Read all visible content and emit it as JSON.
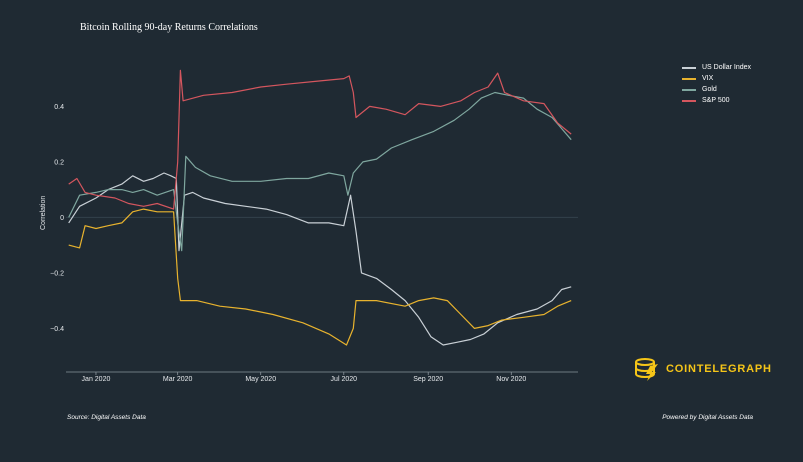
{
  "source_text": "Source: Digital Assets Data",
  "powered_text": "Powered by Digital Assets Data",
  "brand": {
    "name": "COINTELEGRAPH",
    "logo_icon": "cointelegraph-logo-icon",
    "color": "#f5c518"
  },
  "chart_data": {
    "type": "line",
    "title": "Bitcoin Rolling 90-day Returns Correlations",
    "xlabel": "",
    "ylabel": "Correlation",
    "xlim": [
      "2019-12-10",
      "2020-12-20"
    ],
    "ylim": [
      -0.55,
      0.56
    ],
    "x_ticks": [
      "2020-01-01",
      "2020-03-01",
      "2020-05-01",
      "2020-07-01",
      "2020-09-01",
      "2020-11-01"
    ],
    "x_tick_labels": [
      "Jan 2020",
      "Mar 2020",
      "May 2020",
      "Jul 2020",
      "Sep 2020",
      "Nov 2020"
    ],
    "y_ticks": [
      -0.4,
      -0.2,
      0,
      0.2,
      0.4
    ],
    "y_tick_labels": [
      "−0.4",
      "−0.2",
      "0",
      "0.2",
      "0.4"
    ],
    "grid": false,
    "zero_line": true,
    "legend_position": "top-right",
    "series": [
      {
        "name": "US Dollar Index",
        "color": "#c9d0d6",
        "points": [
          [
            "2019-12-12",
            -0.02
          ],
          [
            "2019-12-20",
            0.04
          ],
          [
            "2020-01-01",
            0.07
          ],
          [
            "2020-01-10",
            0.1
          ],
          [
            "2020-01-20",
            0.12
          ],
          [
            "2020-01-28",
            0.15
          ],
          [
            "2020-02-05",
            0.13
          ],
          [
            "2020-02-12",
            0.14
          ],
          [
            "2020-02-20",
            0.16
          ],
          [
            "2020-02-25",
            0.15
          ],
          [
            "2020-02-29",
            0.14
          ],
          [
            "2020-03-02",
            -0.12
          ],
          [
            "2020-03-06",
            0.08
          ],
          [
            "2020-03-12",
            0.09
          ],
          [
            "2020-03-20",
            0.07
          ],
          [
            "2020-04-05",
            0.05
          ],
          [
            "2020-04-20",
            0.04
          ],
          [
            "2020-05-05",
            0.03
          ],
          [
            "2020-05-20",
            0.01
          ],
          [
            "2020-06-05",
            -0.02
          ],
          [
            "2020-06-20",
            -0.02
          ],
          [
            "2020-07-01",
            -0.03
          ],
          [
            "2020-07-06",
            0.08
          ],
          [
            "2020-07-10",
            -0.05
          ],
          [
            "2020-07-14",
            -0.2
          ],
          [
            "2020-07-25",
            -0.22
          ],
          [
            "2020-08-05",
            -0.26
          ],
          [
            "2020-08-15",
            -0.3
          ],
          [
            "2020-08-25",
            -0.36
          ],
          [
            "2020-09-03",
            -0.43
          ],
          [
            "2020-09-12",
            -0.46
          ],
          [
            "2020-09-22",
            -0.45
          ],
          [
            "2020-10-02",
            -0.44
          ],
          [
            "2020-10-12",
            -0.42
          ],
          [
            "2020-10-22",
            -0.38
          ],
          [
            "2020-11-05",
            -0.35
          ],
          [
            "2020-11-20",
            -0.33
          ],
          [
            "2020-12-01",
            -0.3
          ],
          [
            "2020-12-08",
            -0.26
          ],
          [
            "2020-12-15",
            -0.25
          ]
        ]
      },
      {
        "name": "VIX",
        "color": "#e8b32e",
        "points": [
          [
            "2019-12-12",
            -0.1
          ],
          [
            "2019-12-20",
            -0.11
          ],
          [
            "2019-12-24",
            -0.03
          ],
          [
            "2020-01-01",
            -0.04
          ],
          [
            "2020-01-10",
            -0.03
          ],
          [
            "2020-01-20",
            -0.02
          ],
          [
            "2020-01-28",
            0.02
          ],
          [
            "2020-02-05",
            0.03
          ],
          [
            "2020-02-15",
            0.02
          ],
          [
            "2020-02-27",
            0.02
          ],
          [
            "2020-03-01",
            -0.22
          ],
          [
            "2020-03-03",
            -0.3
          ],
          [
            "2020-03-15",
            -0.3
          ],
          [
            "2020-04-01",
            -0.32
          ],
          [
            "2020-04-20",
            -0.33
          ],
          [
            "2020-05-10",
            -0.35
          ],
          [
            "2020-06-01",
            -0.38
          ],
          [
            "2020-06-20",
            -0.42
          ],
          [
            "2020-07-03",
            -0.46
          ],
          [
            "2020-07-08",
            -0.4
          ],
          [
            "2020-07-10",
            -0.3
          ],
          [
            "2020-07-25",
            -0.3
          ],
          [
            "2020-08-15",
            -0.32
          ],
          [
            "2020-08-25",
            -0.3
          ],
          [
            "2020-09-05",
            -0.29
          ],
          [
            "2020-09-15",
            -0.3
          ],
          [
            "2020-09-25",
            -0.35
          ],
          [
            "2020-10-05",
            -0.4
          ],
          [
            "2020-10-15",
            -0.39
          ],
          [
            "2020-10-25",
            -0.37
          ],
          [
            "2020-11-10",
            -0.36
          ],
          [
            "2020-11-25",
            -0.35
          ],
          [
            "2020-12-05",
            -0.32
          ],
          [
            "2020-12-15",
            -0.3
          ]
        ]
      },
      {
        "name": "Gold",
        "color": "#7fa79f",
        "points": [
          [
            "2019-12-12",
            0.0
          ],
          [
            "2019-12-20",
            0.08
          ],
          [
            "2020-01-01",
            0.09
          ],
          [
            "2020-01-10",
            0.1
          ],
          [
            "2020-01-20",
            0.1
          ],
          [
            "2020-01-28",
            0.09
          ],
          [
            "2020-02-05",
            0.1
          ],
          [
            "2020-02-15",
            0.08
          ],
          [
            "2020-02-27",
            0.1
          ],
          [
            "2020-03-01",
            -0.02
          ],
          [
            "2020-03-04",
            -0.12
          ],
          [
            "2020-03-07",
            0.22
          ],
          [
            "2020-03-14",
            0.18
          ],
          [
            "2020-03-25",
            0.15
          ],
          [
            "2020-04-10",
            0.13
          ],
          [
            "2020-05-01",
            0.13
          ],
          [
            "2020-05-20",
            0.14
          ],
          [
            "2020-06-05",
            0.14
          ],
          [
            "2020-06-20",
            0.16
          ],
          [
            "2020-07-01",
            0.15
          ],
          [
            "2020-07-04",
            0.08
          ],
          [
            "2020-07-08",
            0.16
          ],
          [
            "2020-07-15",
            0.2
          ],
          [
            "2020-07-25",
            0.21
          ],
          [
            "2020-08-05",
            0.25
          ],
          [
            "2020-08-20",
            0.28
          ],
          [
            "2020-09-05",
            0.31
          ],
          [
            "2020-09-20",
            0.35
          ],
          [
            "2020-10-01",
            0.39
          ],
          [
            "2020-10-10",
            0.43
          ],
          [
            "2020-10-20",
            0.45
          ],
          [
            "2020-10-30",
            0.44
          ],
          [
            "2020-11-10",
            0.43
          ],
          [
            "2020-11-20",
            0.39
          ],
          [
            "2020-12-01",
            0.36
          ],
          [
            "2020-12-08",
            0.32
          ],
          [
            "2020-12-15",
            0.28
          ]
        ]
      },
      {
        "name": "S&P 500",
        "color": "#d4565e",
        "points": [
          [
            "2019-12-12",
            0.12
          ],
          [
            "2019-12-18",
            0.14
          ],
          [
            "2019-12-24",
            0.09
          ],
          [
            "2020-01-01",
            0.08
          ],
          [
            "2020-01-15",
            0.07
          ],
          [
            "2020-01-25",
            0.05
          ],
          [
            "2020-02-05",
            0.04
          ],
          [
            "2020-02-15",
            0.05
          ],
          [
            "2020-02-27",
            0.03
          ],
          [
            "2020-03-01",
            0.2
          ],
          [
            "2020-03-03",
            0.53
          ],
          [
            "2020-03-05",
            0.42
          ],
          [
            "2020-03-20",
            0.44
          ],
          [
            "2020-04-10",
            0.45
          ],
          [
            "2020-05-01",
            0.47
          ],
          [
            "2020-05-20",
            0.48
          ],
          [
            "2020-06-10",
            0.49
          ],
          [
            "2020-07-01",
            0.5
          ],
          [
            "2020-07-05",
            0.51
          ],
          [
            "2020-07-08",
            0.45
          ],
          [
            "2020-07-10",
            0.36
          ],
          [
            "2020-07-20",
            0.4
          ],
          [
            "2020-08-01",
            0.39
          ],
          [
            "2020-08-15",
            0.37
          ],
          [
            "2020-08-25",
            0.41
          ],
          [
            "2020-09-10",
            0.4
          ],
          [
            "2020-09-25",
            0.42
          ],
          [
            "2020-10-05",
            0.45
          ],
          [
            "2020-10-15",
            0.47
          ],
          [
            "2020-10-22",
            0.52
          ],
          [
            "2020-10-27",
            0.45
          ],
          [
            "2020-11-10",
            0.42
          ],
          [
            "2020-11-25",
            0.41
          ],
          [
            "2020-12-05",
            0.34
          ],
          [
            "2020-12-15",
            0.3
          ]
        ]
      }
    ]
  }
}
